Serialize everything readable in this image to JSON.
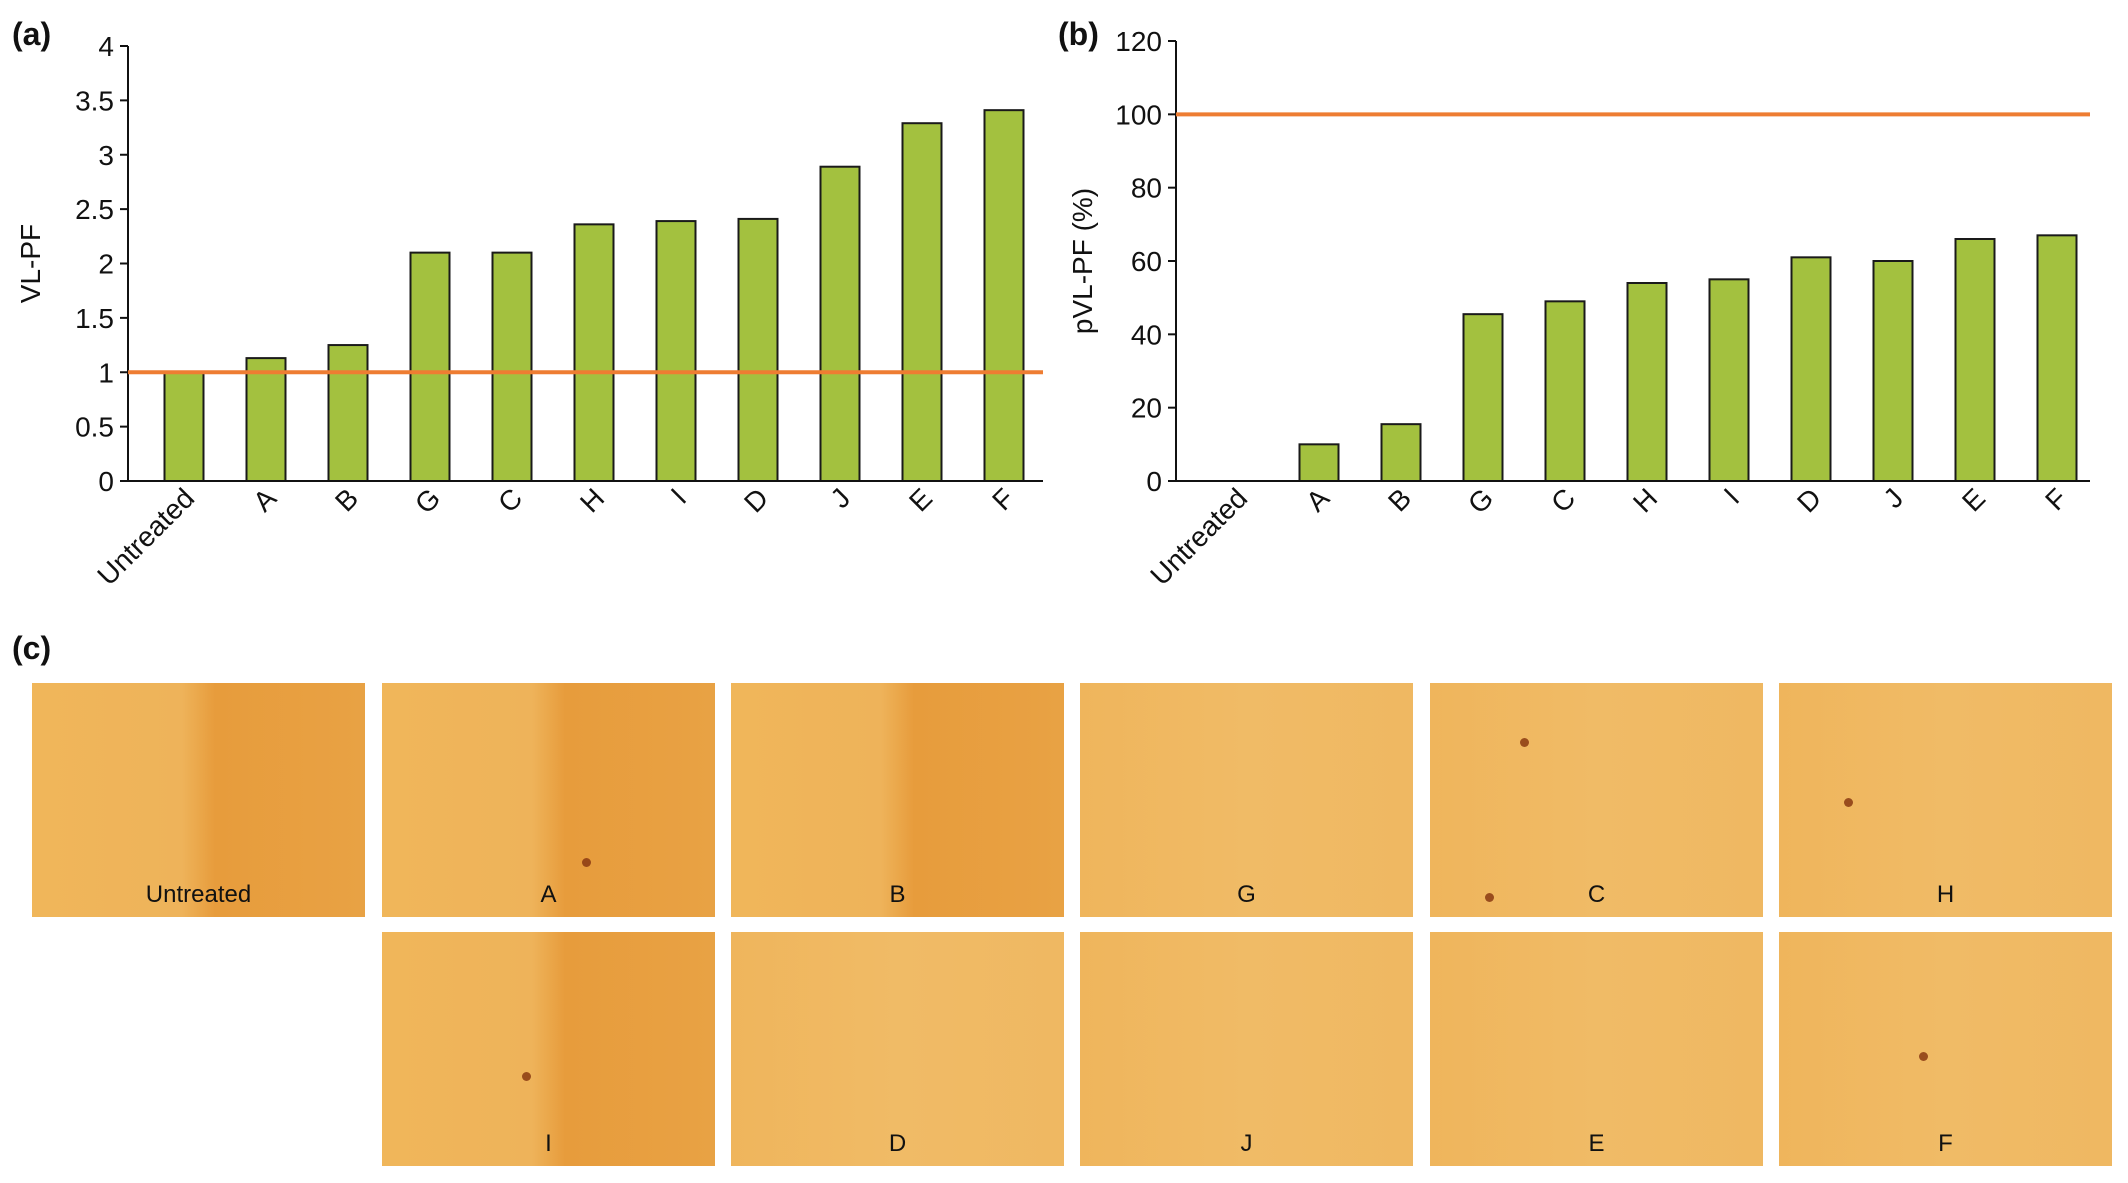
{
  "panels": {
    "a": "(a)",
    "b": "(b)",
    "c": "(c)"
  },
  "colors": {
    "bar": "#a3c13f",
    "bar_stroke": "#1a1a1a",
    "reference_line": "#ee7d32",
    "photo_base": "#e9a94a"
  },
  "chart_data": [
    {
      "type": "bar",
      "categories": [
        "Untreated",
        "A",
        "B",
        "G",
        "C",
        "H",
        "I",
        "D",
        "J",
        "E",
        "F"
      ],
      "values": [
        1.0,
        1.13,
        1.25,
        2.1,
        2.1,
        2.36,
        2.39,
        2.41,
        2.89,
        3.29,
        3.41
      ],
      "ylabel": "VL-PF",
      "ylim": [
        0,
        4
      ],
      "yticks": [
        0,
        0.5,
        1,
        1.5,
        2,
        2.5,
        3,
        3.5,
        4
      ],
      "reference_line": 1,
      "grid": false
    },
    {
      "type": "bar",
      "categories": [
        "Untreated",
        "A",
        "B",
        "G",
        "C",
        "H",
        "I",
        "D",
        "J",
        "E",
        "F"
      ],
      "values": [
        0,
        10,
        15.5,
        45.5,
        49,
        54,
        55,
        61,
        60,
        66,
        67
      ],
      "ylabel": "pVL-PF (%)",
      "ylim": [
        0,
        120
      ],
      "yticks": [
        0,
        20,
        40,
        60,
        80,
        100,
        120
      ],
      "reference_line": 100,
      "grid": false
    }
  ],
  "photos": [
    {
      "label": "Untreated"
    },
    {
      "label": "A"
    },
    {
      "label": "B"
    },
    {
      "label": "G"
    },
    {
      "label": "C"
    },
    {
      "label": "H"
    },
    {
      "label": "I"
    },
    {
      "label": "D"
    },
    {
      "label": "J"
    },
    {
      "label": "E"
    },
    {
      "label": "F"
    }
  ]
}
